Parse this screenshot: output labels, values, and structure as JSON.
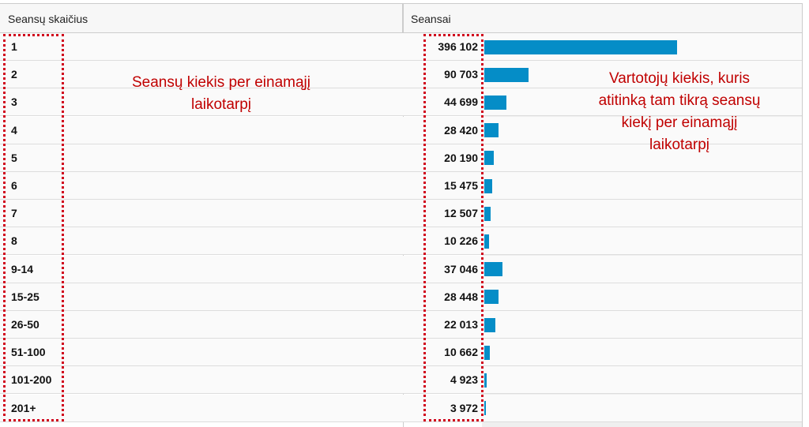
{
  "table": {
    "columns": [
      "Seansų skaičius",
      "Seansai"
    ],
    "rows": [
      {
        "label": "1",
        "value": 396102,
        "value_label": "396 102"
      },
      {
        "label": "2",
        "value": 90703,
        "value_label": "90 703"
      },
      {
        "label": "3",
        "value": 44699,
        "value_label": "44 699"
      },
      {
        "label": "4",
        "value": 28420,
        "value_label": "28 420"
      },
      {
        "label": "5",
        "value": 20190,
        "value_label": "20 190"
      },
      {
        "label": "6",
        "value": 15475,
        "value_label": "15 475"
      },
      {
        "label": "7",
        "value": 12507,
        "value_label": "12 507"
      },
      {
        "label": "8",
        "value": 10226,
        "value_label": "10 226"
      },
      {
        "label": "9-14",
        "value": 37046,
        "value_label": "37 046"
      },
      {
        "label": "15-25",
        "value": 28448,
        "value_label": "28 448"
      },
      {
        "label": "26-50",
        "value": 22013,
        "value_label": "22 013"
      },
      {
        "label": "51-100",
        "value": 10662,
        "value_label": "10 662"
      },
      {
        "label": "101-200",
        "value": 4923,
        "value_label": "4 923"
      },
      {
        "label": "201+",
        "value": 3972,
        "value_label": "3 972"
      }
    ]
  },
  "annotations": [
    {
      "lines": [
        "Seansų kiekis per einamąjį",
        "laikotarpį"
      ]
    },
    {
      "lines": [
        "Vartotojų kiekis, kuris",
        "atitinką tam tikrą seansų",
        "kiekį per einamąjį",
        "laikotarpį"
      ]
    }
  ]
}
